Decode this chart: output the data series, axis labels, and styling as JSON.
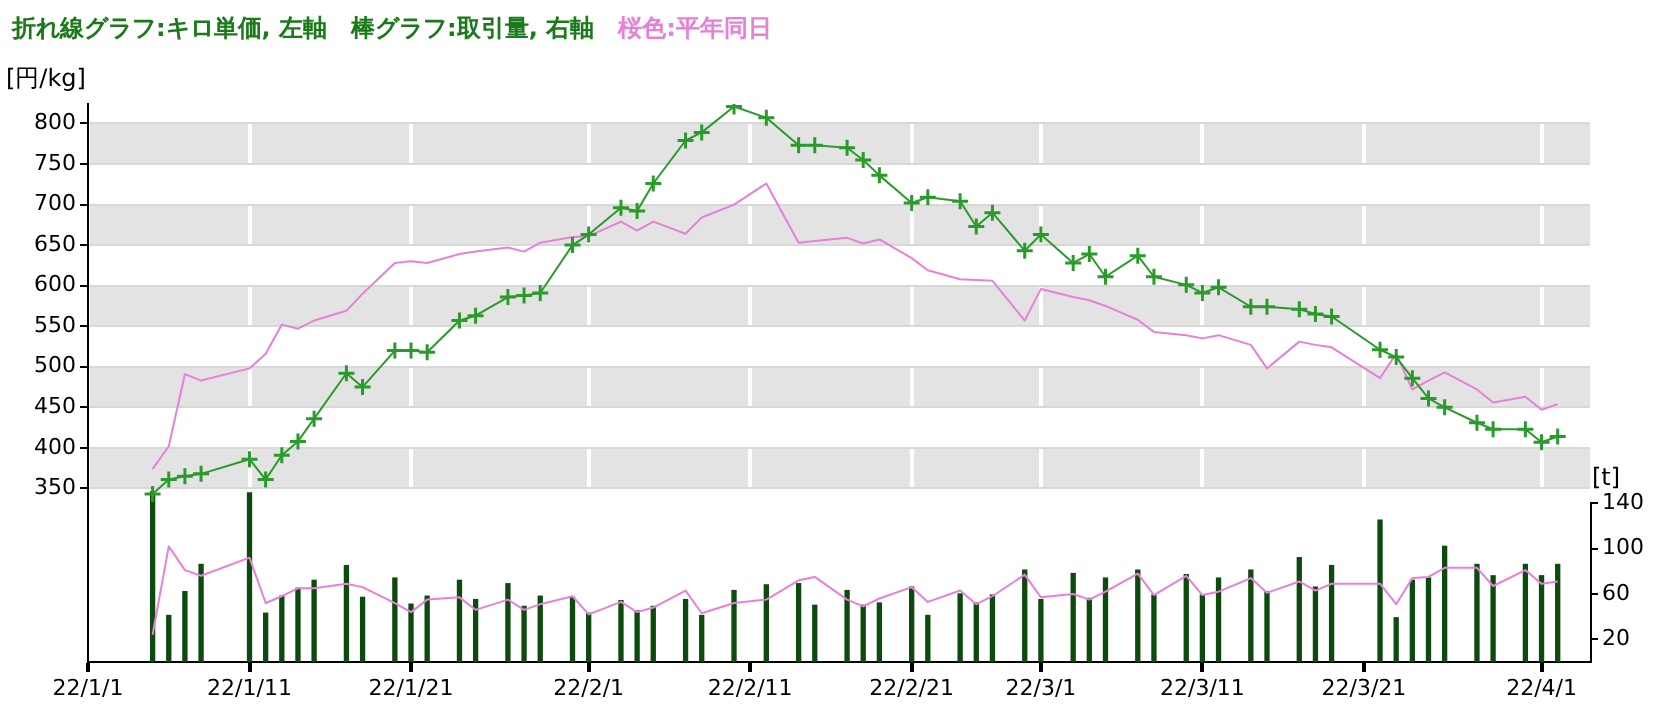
{
  "chart_data": {
    "type": "line",
    "title": "折れ線グラフ:キロ単価, 左軸　棒グラフ:取引量, 右軸",
    "subtitle": "桜色:平年同日",
    "ylabel": "[円/kg]",
    "y2label": "[t]",
    "x": [
      "--01-05",
      "--01-06",
      "--01-07",
      "--01-08",
      "--01-11",
      "--01-12",
      "--01-13",
      "--01-14",
      "--01-15",
      "--01-17",
      "--01-18",
      "--01-20",
      "--01-21",
      "--01-22",
      "--01-24",
      "--01-25",
      "--01-27",
      "--01-28",
      "--01-29",
      "--01-31",
      "--02-01",
      "--02-03",
      "--02-04",
      "--02-05",
      "--02-07",
      "--02-08",
      "--02-10",
      "--02-12",
      "--02-14",
      "--02-15",
      "--02-17",
      "--02-18",
      "--02-19",
      "--02-21",
      "--02-22",
      "--02-24",
      "--02-25",
      "--02-26",
      "--02-28",
      "--03-01",
      "--03-03",
      "--03-04",
      "--03-05",
      "--03-07",
      "--03-08",
      "--03-10",
      "--03-11",
      "--03-12",
      "--03-14",
      "--03-15",
      "--03-17",
      "--03-18",
      "--03-19",
      "--03-22",
      "--03-23",
      "--03-24",
      "--03-25",
      "--03-26",
      "--03-28",
      "--03-29",
      "--03-31",
      "--04-01",
      "--04-02"
    ],
    "series": [
      {
        "type": "bar",
        "axis": "y2",
        "color": "#0d4a0d",
        "values": [
          150,
          41,
          62,
          86,
          149,
          43,
          58,
          65,
          72,
          85,
          57,
          74,
          51,
          58,
          72,
          55,
          69,
          49,
          58,
          57,
          43,
          54,
          45,
          49,
          55,
          41,
          63,
          68,
          69,
          50,
          63,
          50,
          52,
          66,
          41,
          60,
          52,
          59,
          81,
          55,
          78,
          56,
          74,
          81,
          59,
          77,
          59,
          74,
          81,
          62,
          92,
          66,
          85,
          125,
          39,
          72,
          74,
          102,
          86,
          76,
          86,
          76,
          86
        ]
      },
      {
        "axis": "y2",
        "color": "#e880d8",
        "values": [
          24,
          102,
          81,
          76,
          92,
          52,
          58,
          65,
          65,
          69,
          66,
          52,
          44,
          55,
          57,
          46,
          55,
          46,
          51,
          58,
          42,
          53,
          44,
          48,
          63,
          43,
          52,
          55,
          72,
          75,
          55,
          49,
          56,
          66,
          53,
          63,
          51,
          58,
          77,
          57,
          60,
          55,
          62,
          78,
          59,
          76,
          59,
          62,
          74,
          61,
          71,
          63,
          69,
          69,
          51,
          74,
          75,
          83,
          83,
          67,
          81,
          69,
          71
        ]
      },
      {
        "axis": "y",
        "color": "#e880d8",
        "values": [
          374,
          402,
          491,
          483,
          498,
          516,
          552,
          547,
          557,
          569,
          590,
          628,
          630,
          628,
          639,
          642,
          647,
          642,
          653,
          660,
          661,
          679,
          668,
          679,
          664,
          684,
          700,
          726,
          653,
          655,
          659,
          652,
          657,
          634,
          619,
          608,
          607,
          606,
          557,
          596,
          586,
          582,
          575,
          558,
          543,
          539,
          535,
          539,
          527,
          498,
          531,
          527,
          524,
          486,
          516,
          472,
          483,
          493,
          472,
          456,
          463,
          447,
          454
        ]
      },
      {
        "axis": "y",
        "color": "#2a9a2a",
        "marker": "cross",
        "values": [
          343,
          361,
          365,
          368,
          386,
          361,
          391,
          408,
          436,
          492,
          475,
          520,
          520,
          518,
          557,
          563,
          586,
          588,
          591,
          650,
          663,
          696,
          692,
          726,
          779,
          789,
          821,
          807,
          773,
          773,
          770,
          755,
          736,
          702,
          709,
          704,
          673,
          690,
          643,
          663,
          628,
          639,
          611,
          637,
          611,
          601,
          591,
          598,
          574,
          574,
          571,
          565,
          562,
          521,
          512,
          486,
          461,
          450,
          431,
          423,
          423,
          407,
          414
        ]
      }
    ],
    "xlim": [
      "--01-01",
      "--04-04"
    ],
    "xticks": [
      {
        "value": "--01-01",
        "label": "22/1/1"
      },
      {
        "value": "--01-11",
        "label": "22/1/11"
      },
      {
        "value": "--01-21",
        "label": "22/1/21"
      },
      {
        "value": "--02-01",
        "label": "22/2/1"
      },
      {
        "value": "--02-11",
        "label": "22/2/11"
      },
      {
        "value": "--02-21",
        "label": "22/2/21"
      },
      {
        "value": "--03-01",
        "label": "22/3/1"
      },
      {
        "value": "--03-11",
        "label": "22/3/11"
      },
      {
        "value": "--03-21",
        "label": "22/3/21"
      },
      {
        "value": "--04-01",
        "label": "22/4/1"
      }
    ],
    "ylim": [
      136,
      824
    ],
    "yticks": [
      350,
      400,
      450,
      500,
      550,
      600,
      650,
      700,
      750,
      800
    ],
    "y2lim": [
      0,
      492
    ],
    "y2ticks": [
      20,
      60,
      100,
      140
    ],
    "grid": true,
    "legend": false
  }
}
